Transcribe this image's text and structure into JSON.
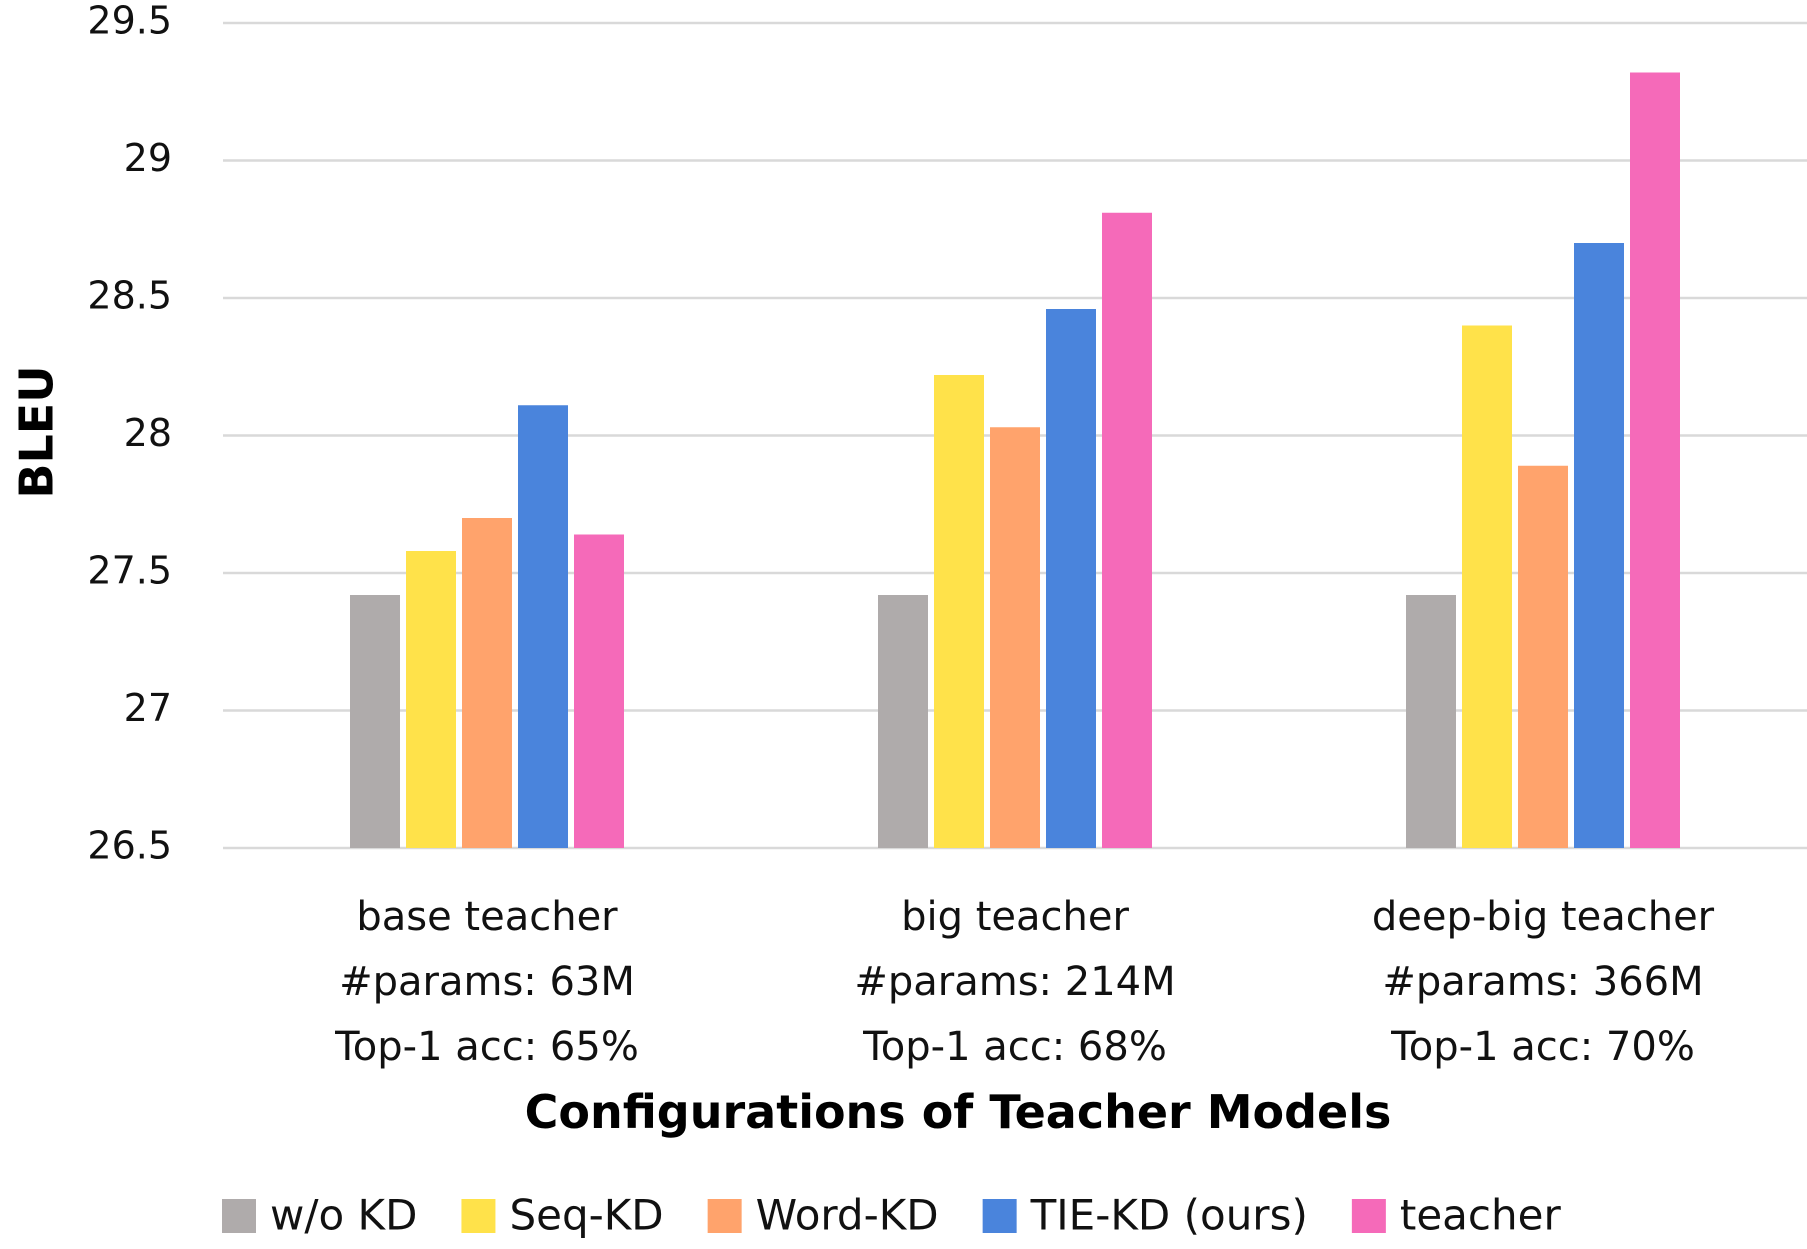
{
  "chart_data": {
    "type": "bar",
    "title": "",
    "xlabel": "Configurations of Teacher Models",
    "ylabel": "BLEU",
    "ylim": [
      26.5,
      29.5
    ],
    "yticks": [
      "26.5",
      "27",
      "27.5",
      "28",
      "28.5",
      "29",
      "29.5"
    ],
    "grid": true,
    "legend_position": "bottom",
    "categories": [
      {
        "lines": [
          "base teacher",
          "#params: 63M",
          "Top-1 acc: 65%"
        ]
      },
      {
        "lines": [
          "big teacher",
          "#params: 214M",
          "Top-1 acc: 68%"
        ]
      },
      {
        "lines": [
          "deep-big teacher",
          "#params: 366M",
          "Top-1 acc: 70%"
        ]
      }
    ],
    "series": [
      {
        "name": "w/o KD",
        "color": "#AFABAB",
        "values": [
          27.42,
          27.42,
          27.42
        ]
      },
      {
        "name": "Seq-KD",
        "color": "#FFE24A",
        "values": [
          27.58,
          28.22,
          28.4
        ]
      },
      {
        "name": "Word-KD",
        "color": "#FFA36C",
        "values": [
          27.7,
          28.03,
          27.89
        ]
      },
      {
        "name": "TIE-KD (ours)",
        "color": "#4A84DC",
        "values": [
          28.11,
          28.46,
          28.7
        ]
      },
      {
        "name": "teacher",
        "color": "#F56AB9",
        "values": [
          27.64,
          28.81,
          29.32
        ]
      }
    ]
  }
}
